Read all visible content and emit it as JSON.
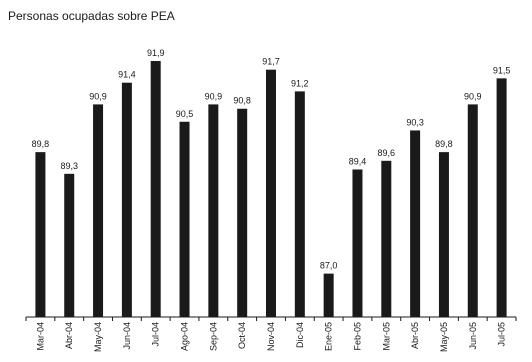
{
  "chart_data": {
    "type": "bar",
    "title": "Personas ocupadas sobre PEA",
    "xlabel": "",
    "ylabel": "",
    "categories": [
      "Mar-04",
      "Abr-04",
      "May-04",
      "Jun-04",
      "Jul-04",
      "Ago-04",
      "Sep-04",
      "Oct-04",
      "Nov-04",
      "Dic-04",
      "Ene-05",
      "Feb-05",
      "Mar-05",
      "Abr-05",
      "May-05",
      "Jun-05",
      "Jul-05"
    ],
    "values": [
      89.8,
      89.3,
      90.9,
      91.4,
      91.9,
      90.5,
      90.9,
      90.8,
      91.7,
      91.2,
      87.0,
      89.4,
      89.6,
      90.3,
      89.8,
      90.9,
      91.5
    ],
    "value_labels": [
      "89,8",
      "89,3",
      "90,9",
      "91,4",
      "91,9",
      "90,5",
      "90,9",
      "90,8",
      "91,7",
      "91,2",
      "87,0",
      "89,4",
      "89,6",
      "90,3",
      "89,8",
      "90,9",
      "91,5"
    ],
    "ylim": [
      86.0,
      92.2
    ],
    "bar_color": "#1a1a1a",
    "grid": false,
    "legend": "none"
  }
}
